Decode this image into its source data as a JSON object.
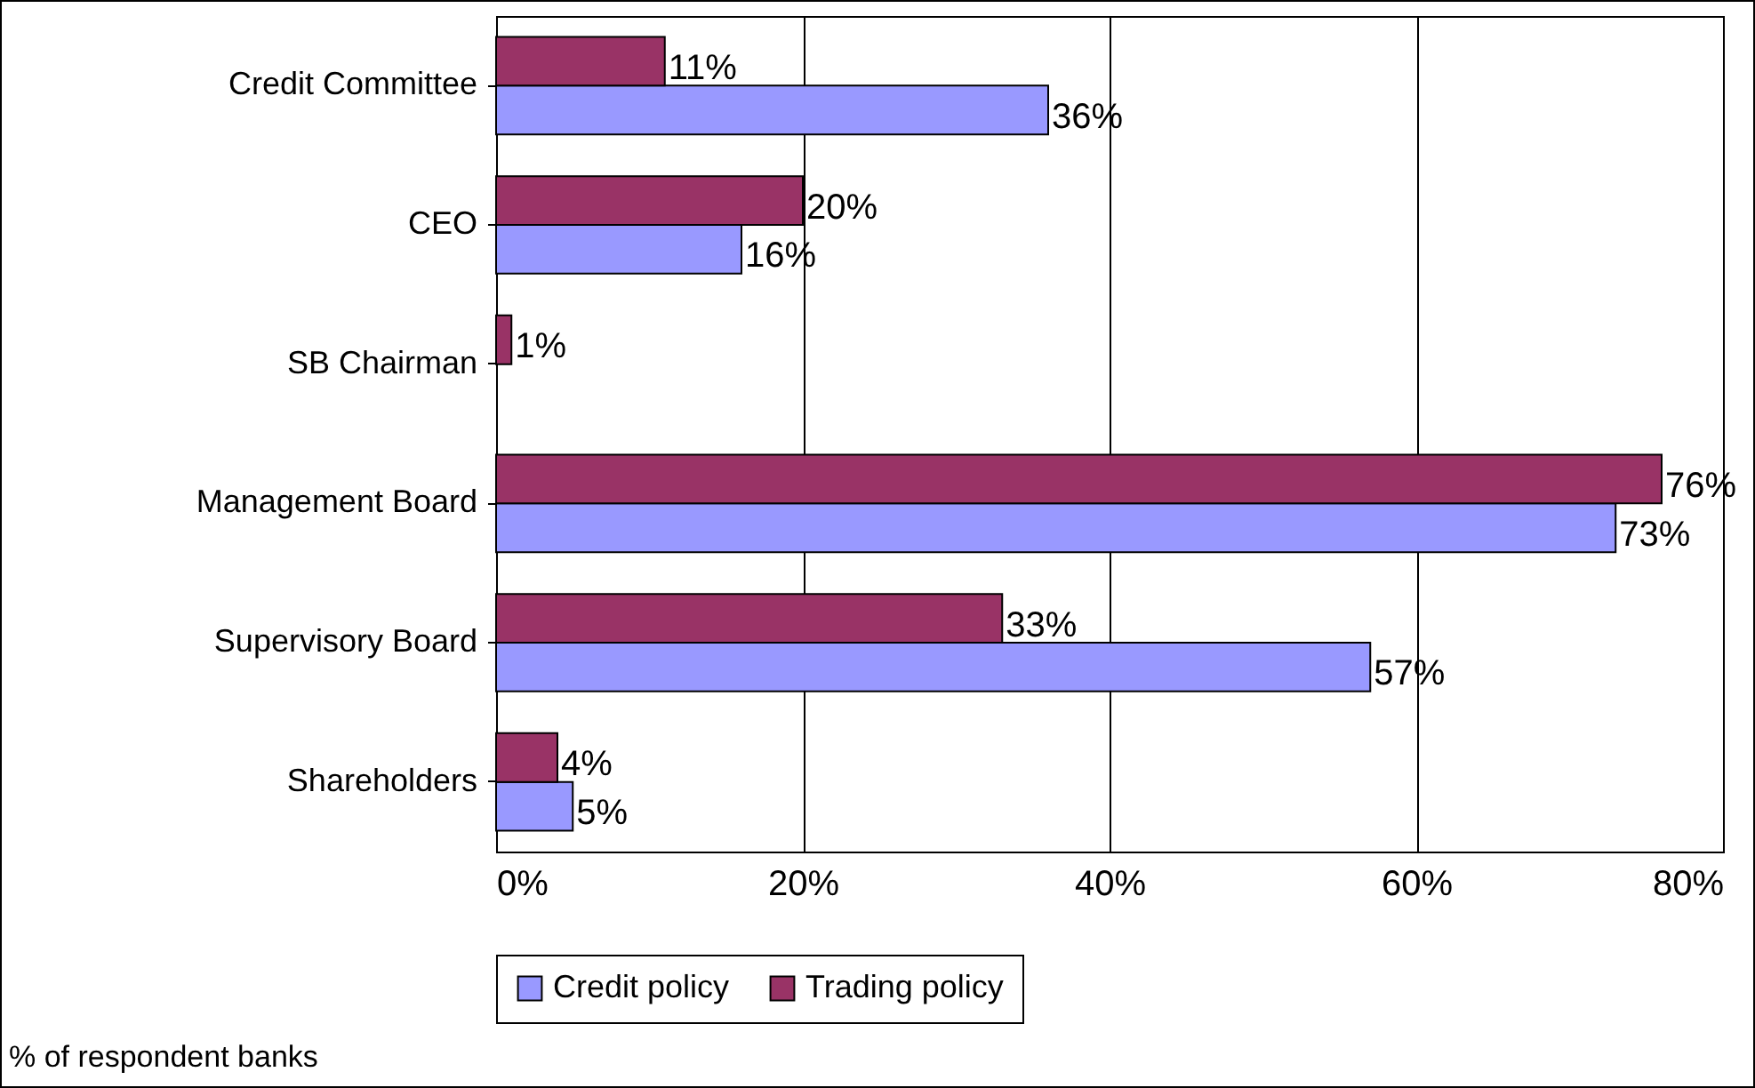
{
  "chart_data": {
    "type": "bar",
    "orientation": "horizontal",
    "categories": [
      "Credit Committee",
      "CEO",
      "SB Chairman",
      "Management Board",
      "Supervisory Board",
      "Shareholders"
    ],
    "series": [
      {
        "name": "Credit policy",
        "color": "#9999ff",
        "values": [
          36,
          16,
          null,
          73,
          57,
          5
        ],
        "value_labels": [
          "36%",
          "16%",
          null,
          "73%",
          "57%",
          "5%"
        ]
      },
      {
        "name": "Trading policy",
        "color": "#993366",
        "values": [
          11,
          20,
          1,
          76,
          33,
          4
        ],
        "value_labels": [
          "11%",
          "20%",
          "1%",
          "76%",
          "33%",
          "4%"
        ]
      }
    ],
    "xlim": [
      0,
      80
    ],
    "xticks": [
      {
        "value": 0,
        "label": "0%"
      },
      {
        "value": 20,
        "label": "20%"
      },
      {
        "value": 40,
        "label": "40%"
      },
      {
        "value": 60,
        "label": "60%"
      },
      {
        "value": 80,
        "label": "80%"
      }
    ],
    "grid": "x",
    "legend": "bottom",
    "annotations": [
      "% of respondent banks"
    ]
  }
}
